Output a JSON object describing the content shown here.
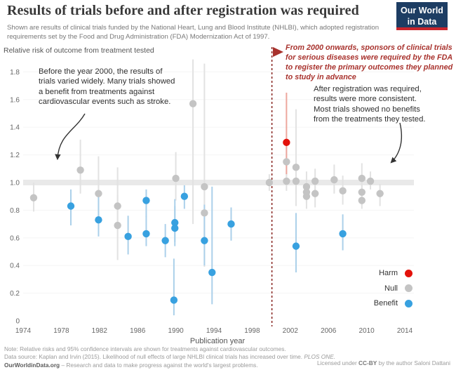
{
  "header": {
    "title": "Results of trials before and after registration was required",
    "subtitle": "Shown are results of clinical trials funded by the National Heart, Lung and Blood Institute (NHLBI), which adopted registration requirements set by the Food and Drug Administration (FDA) Modernization Act of 1997.",
    "logo_line1": "Our World",
    "logo_line2": "in Data"
  },
  "annotations": {
    "before": [
      "Before the year 2000, the results of",
      "trials varied widely. Many trials showed",
      "a benefit from treatments against",
      "cardiovascular events such as stroke."
    ],
    "after": [
      "After registration was required,",
      "results were more consistent.",
      "Most trials showed no benefits",
      "from the treatments they tested."
    ],
    "fda": [
      "From 2000 onwards, sponsors of clinical trials",
      "for serious diseases were required by the FDA",
      "to register the primary outcomes they planned",
      "to study in advance"
    ]
  },
  "chart_data": {
    "type": "scatter",
    "title": "Results of trials before and after registration was required",
    "xlabel": "Publication year",
    "ylabel": "Relative risk of outcome from treatment tested",
    "xlim": [
      1973,
      2015
    ],
    "ylim": [
      0,
      1.9
    ],
    "x_ticks": [
      1974,
      1978,
      1982,
      1986,
      1990,
      1994,
      1998,
      2002,
      2006,
      2010,
      2014
    ],
    "y_tick_values": [
      0,
      0.2,
      0.4,
      0.6,
      0.8,
      1.0,
      1.2,
      1.4,
      1.6,
      1.8
    ],
    "y_tick_labels": [
      "0",
      "0.2",
      "0.4",
      "0.6",
      "0.8",
      "1.0",
      "1.2",
      "1.4",
      "1.6",
      "1.8"
    ],
    "reference_band_y": 1.0,
    "reference_line_x": 2000,
    "reference_line_color": "#8c2d28",
    "grid": "faint-horizontal",
    "legend_position": "right-bottom",
    "series": [
      {
        "name": "Null",
        "color": "#c4c4c4",
        "ci_color": "#e2e2e2",
        "points": [
          {
            "year": 1975.1,
            "rr": 0.89,
            "ci": [
              0.79,
              1.0
            ]
          },
          {
            "year": 1980.0,
            "rr": 1.09,
            "ci": [
              0.92,
              1.31
            ]
          },
          {
            "year": 1981.9,
            "rr": 0.92,
            "ci": [
              0.75,
              1.19
            ]
          },
          {
            "year": 1983.9,
            "rr": 0.83,
            "ci": [
              0.66,
              1.11
            ]
          },
          {
            "year": 1983.9,
            "rr": 0.69,
            "ci": [
              0.44,
              0.91
            ]
          },
          {
            "year": 1990.0,
            "rr": 1.03,
            "ci": [
              0.87,
              1.22
            ]
          },
          {
            "year": 1991.8,
            "rr": 1.57,
            "ci": [
              0.7,
              1.89
            ]
          },
          {
            "year": 1993.0,
            "rr": 0.97,
            "ci": [
              0.39,
              1.86
            ]
          },
          {
            "year": 1993.0,
            "rr": 0.78,
            "ci": [
              0.61,
              0.99
            ]
          },
          {
            "year": 1999.8,
            "rr": 1.0,
            "ci": [
              0.94,
              1.06
            ]
          },
          {
            "year": 2001.6,
            "rr": 1.15,
            "ci": [
              1.04,
              1.28
            ]
          },
          {
            "year": 2001.6,
            "rr": 1.01,
            "ci": [
              0.94,
              1.08
            ]
          },
          {
            "year": 2002.6,
            "rr": 1.11,
            "ci": [
              0.83,
              1.53
            ]
          },
          {
            "year": 2002.6,
            "rr": 1.01,
            "ci": [
              0.92,
              1.1
            ]
          },
          {
            "year": 2003.7,
            "rr": 0.97,
            "ci": [
              0.87,
              1.08
            ]
          },
          {
            "year": 2003.7,
            "rr": 0.93,
            "ci": [
              0.85,
              1.02
            ]
          },
          {
            "year": 2003.7,
            "rr": 0.9,
            "ci": [
              0.81,
              0.99
            ]
          },
          {
            "year": 2004.6,
            "rr": 1.01,
            "ci": [
              0.93,
              1.1
            ]
          },
          {
            "year": 2004.6,
            "rr": 0.92,
            "ci": [
              0.82,
              1.02
            ]
          },
          {
            "year": 2006.6,
            "rr": 1.02,
            "ci": [
              0.92,
              1.13
            ]
          },
          {
            "year": 2007.5,
            "rr": 0.94,
            "ci": [
              0.84,
              1.05
            ]
          },
          {
            "year": 2009.5,
            "rr": 1.03,
            "ci": [
              0.93,
              1.14
            ]
          },
          {
            "year": 2009.5,
            "rr": 0.93,
            "ci": [
              0.84,
              1.03
            ]
          },
          {
            "year": 2009.5,
            "rr": 0.87,
            "ci": [
              0.81,
              0.94
            ]
          },
          {
            "year": 2010.4,
            "rr": 1.01,
            "ci": [
              0.95,
              1.08
            ]
          },
          {
            "year": 2011.4,
            "rr": 0.92,
            "ci": [
              0.83,
              0.99
            ]
          }
        ]
      },
      {
        "name": "Benefit",
        "color": "#38a1e0",
        "ci_color": "#abd0ea",
        "points": [
          {
            "year": 1979.0,
            "rr": 0.83,
            "ci": [
              0.69,
              0.95
            ]
          },
          {
            "year": 1981.9,
            "rr": 0.73,
            "ci": [
              0.61,
              0.9
            ]
          },
          {
            "year": 1985.0,
            "rr": 0.61,
            "ci": [
              0.48,
              0.76
            ]
          },
          {
            "year": 1986.9,
            "rr": 0.87,
            "ci": [
              0.75,
              0.95
            ]
          },
          {
            "year": 1986.9,
            "rr": 0.63,
            "ci": [
              0.54,
              0.76
            ]
          },
          {
            "year": 1988.9,
            "rr": 0.58,
            "ci": [
              0.46,
              0.7
            ]
          },
          {
            "year": 1989.9,
            "rr": 0.71,
            "ci": [
              0.57,
              0.88
            ]
          },
          {
            "year": 1989.9,
            "rr": 0.67,
            "ci": [
              0.54,
              0.83
            ]
          },
          {
            "year": 1989.8,
            "rr": 0.15,
            "ci": [
              0.04,
              0.45
            ]
          },
          {
            "year": 1990.9,
            "rr": 0.9,
            "ci": [
              0.81,
              0.98
            ]
          },
          {
            "year": 1993.0,
            "rr": 0.58,
            "ci": [
              0.4,
              0.84
            ]
          },
          {
            "year": 1993.8,
            "rr": 0.35,
            "ci": [
              0.12,
              0.97
            ]
          },
          {
            "year": 1995.8,
            "rr": 0.7,
            "ci": [
              0.58,
              0.82
            ]
          },
          {
            "year": 2002.6,
            "rr": 0.54,
            "ci": [
              0.35,
              0.78
            ]
          },
          {
            "year": 2007.5,
            "rr": 0.63,
            "ci": [
              0.51,
              0.77
            ]
          }
        ]
      },
      {
        "name": "Harm",
        "color": "#e3120b",
        "ci_color": "#eda79e",
        "points": [
          {
            "year": 2001.6,
            "rr": 1.29,
            "ci": [
              1.06,
              1.65
            ]
          }
        ]
      }
    ],
    "legend": [
      {
        "label": "Harm",
        "color": "#e3120b"
      },
      {
        "label": "Null",
        "color": "#c4c4c4"
      },
      {
        "label": "Benefit",
        "color": "#38a1e0"
      }
    ]
  },
  "footer": {
    "note": "Note: Relative risks and 95% confidence intervals are shown for treatments against cardiovascular outcomes.",
    "source_prefix": "Data source: Kaplan and Irvin (2015). Likelihood of null effects of large NHLBI clinical trials has increased over time. ",
    "source_journal": "PLOS ONE.",
    "owid": "OurWorldinData.org",
    "owid_tagline": " – Research and data to make progress against the world's largest problems.",
    "license_prefix": "Licensed under ",
    "license_cc": "CC-BY",
    "license_suffix": " by the author Saloni Dattani"
  }
}
